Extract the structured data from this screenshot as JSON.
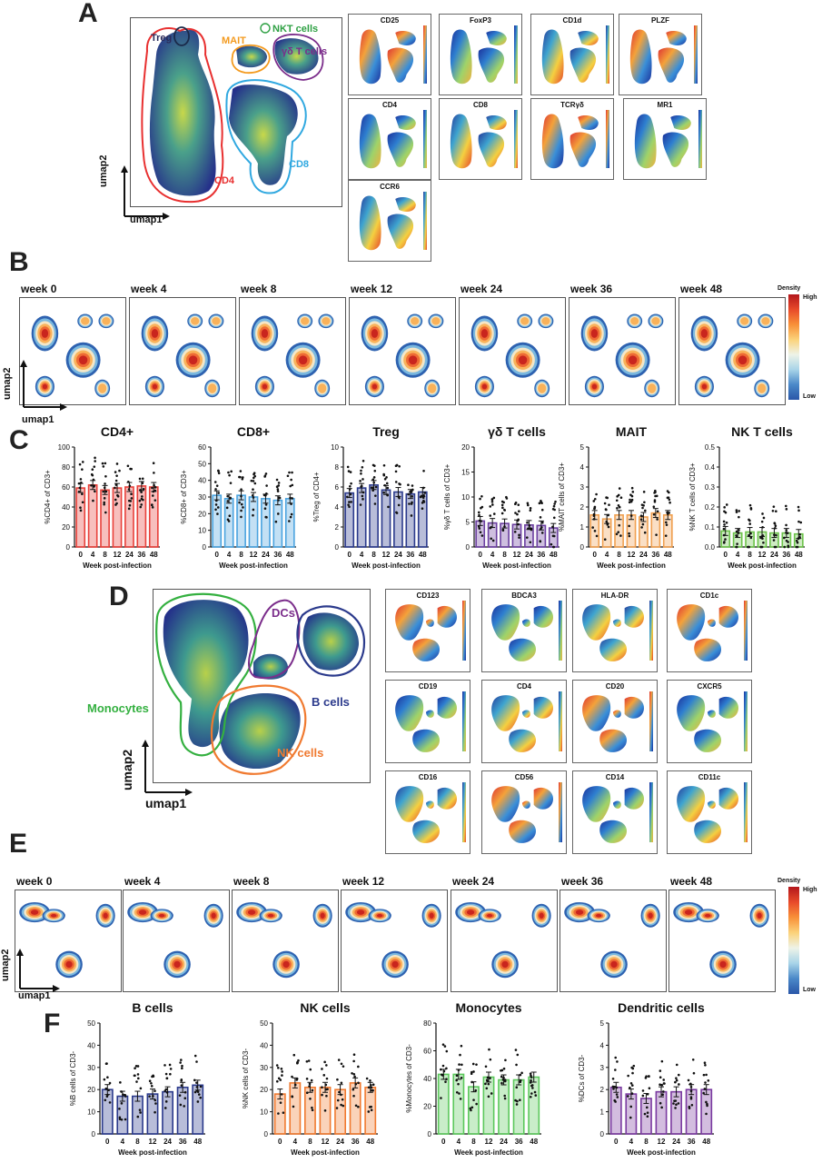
{
  "panels": {
    "A": {
      "letter": "A",
      "gates": {
        "treg": "Treg",
        "mait": "MAIT",
        "nkt": "NKT cells",
        "gd": "γδ T cells",
        "cd4": "CD4",
        "cd8": "CD8"
      },
      "axes": {
        "x": "umap1",
        "y": "umap2"
      },
      "markers": [
        "CD25",
        "FoxP3",
        "CD1d",
        "PLZF",
        "CD4",
        "CD8",
        "TCRγδ",
        "MR1",
        "CCR6"
      ]
    },
    "B": {
      "letter": "B",
      "weeks": [
        "week 0",
        "week 4",
        "week 8",
        "week 12",
        "week 24",
        "week 36",
        "week 48"
      ],
      "axes": {
        "x": "umap1",
        "y": "umap2"
      },
      "legend": {
        "title": "Density",
        "high": "High",
        "low": "Low"
      }
    },
    "C": {
      "letter": "C"
    },
    "D": {
      "letter": "D",
      "gates": {
        "dcs": "DCs",
        "monocytes": "Monocytes",
        "bcells": "B cells",
        "nk": "NK cells"
      },
      "axes": {
        "x": "umap1",
        "y": "umap2"
      },
      "markers": [
        "CD123",
        "BDCA3",
        "HLA-DR",
        "CD1c",
        "CD19",
        "CD4",
        "CD20",
        "CXCR5",
        "CD16",
        "CD56",
        "CD14",
        "CD11c"
      ]
    },
    "E": {
      "letter": "E",
      "weeks": [
        "week 0",
        "week 4",
        "week 8",
        "week 12",
        "week 24",
        "week 36",
        "week 48"
      ],
      "axes": {
        "x": "umap1",
        "y": "umap2"
      },
      "legend": {
        "title": "Density",
        "high": "High",
        "low": "Low"
      }
    },
    "F": {
      "letter": "F"
    }
  },
  "colors": {
    "red": "#e8403a",
    "blue": "#4aa3df",
    "navy": "#2b3a8c",
    "purple": "#6b3fa0",
    "orange": "#f0a050",
    "green": "#6cc24a",
    "nkorange": "#f07a30",
    "bgreen": "#5cc85c",
    "dcpurple": "#7a3aa0",
    "darkred": "#c01a24",
    "cd8blue": "#30a8e0",
    "gdpurple": "#7b2d8b",
    "maitorange": "#f39a1e",
    "nktgreen": "#2ea043"
  },
  "chart_data": [
    {
      "type": "bar",
      "title": "CD4+",
      "ylabel": "%CD4+ of CD3+",
      "xlabel": "Week post-infection",
      "categories": [
        "0",
        "4",
        "8",
        "12",
        "24",
        "36",
        "48"
      ],
      "values": [
        59,
        62,
        57,
        59,
        60,
        61,
        60
      ],
      "ylim": [
        0,
        100
      ],
      "yticks": [
        "0",
        "20",
        "40",
        "60",
        "80",
        "100"
      ],
      "color": "#e8403a"
    },
    {
      "type": "bar",
      "title": "CD8+",
      "ylabel": "%CD8+ of CD3+",
      "xlabel": "Week post-infection",
      "categories": [
        "0",
        "4",
        "8",
        "12",
        "24",
        "36",
        "48"
      ],
      "values": [
        31,
        29,
        31,
        30,
        29,
        28,
        29
      ],
      "ylim": [
        0,
        60
      ],
      "yticks": [
        "0",
        "10",
        "20",
        "30",
        "40",
        "50",
        "60"
      ],
      "color": "#4aa3df"
    },
    {
      "type": "bar",
      "title": "Treg",
      "ylabel": "%Treg of CD4+",
      "xlabel": "Week post-infection",
      "categories": [
        "0",
        "4",
        "8",
        "12",
        "24",
        "36",
        "48"
      ],
      "values": [
        5.4,
        5.9,
        6.2,
        5.7,
        5.5,
        5.3,
        5.5
      ],
      "ylim": [
        0,
        10
      ],
      "yticks": [
        "0",
        "2",
        "4",
        "6",
        "8",
        "10"
      ],
      "color": "#2b3a8c"
    },
    {
      "type": "bar",
      "title": "γδ T cells",
      "ylabel": "%γδ T cells of CD3+",
      "xlabel": "Week post-infection",
      "categories": [
        "0",
        "4",
        "8",
        "12",
        "24",
        "36",
        "48"
      ],
      "values": [
        5.2,
        4.8,
        4.7,
        4.5,
        4.4,
        4.3,
        3.8
      ],
      "ylim": [
        0,
        20
      ],
      "yticks": [
        "0",
        "5",
        "10",
        "15",
        "20"
      ],
      "color": "#6b3fa0"
    },
    {
      "type": "bar",
      "title": "MAIT",
      "ylabel": "%MAIT cells of CD3+",
      "xlabel": "Week post-infection",
      "categories": [
        "0",
        "4",
        "8",
        "12",
        "24",
        "36",
        "48"
      ],
      "values": [
        1.6,
        1.4,
        1.6,
        1.6,
        1.5,
        1.7,
        1.6
      ],
      "ylim": [
        0,
        5
      ],
      "yticks": [
        "0",
        "1",
        "2",
        "3",
        "4",
        "5"
      ],
      "color": "#f0a050"
    },
    {
      "type": "bar",
      "title": "NK T cells",
      "ylabel": "%NK T cells of CD3+",
      "xlabel": "Week post-infection",
      "categories": [
        "0",
        "4",
        "8",
        "12",
        "24",
        "36",
        "48"
      ],
      "values": [
        0.08,
        0.07,
        0.075,
        0.075,
        0.07,
        0.07,
        0.065
      ],
      "ylim": [
        0,
        0.5
      ],
      "yticks": [
        "0.0",
        "0.1",
        "0.2",
        "0.3",
        "0.4",
        "0.5"
      ],
      "color": "#6cc24a"
    },
    {
      "type": "bar",
      "title": "B cells",
      "ylabel": "%B cells of CD3-",
      "xlabel": "Week post-infection",
      "categories": [
        "0",
        "4",
        "8",
        "12",
        "24",
        "36",
        "48"
      ],
      "values": [
        20,
        17,
        17,
        18,
        19,
        21,
        22
      ],
      "ylim": [
        0,
        50
      ],
      "yticks": [
        "0",
        "10",
        "20",
        "30",
        "40",
        "50"
      ],
      "color": "#2b3a8c"
    },
    {
      "type": "bar",
      "title": "NK cells",
      "ylabel": "%NK cells of CD3-",
      "xlabel": "Week post-infection",
      "categories": [
        "0",
        "4",
        "8",
        "12",
        "24",
        "36",
        "48"
      ],
      "values": [
        18,
        23,
        21,
        21,
        20,
        23,
        21
      ],
      "ylim": [
        0,
        50
      ],
      "yticks": [
        "0",
        "10",
        "20",
        "30",
        "40",
        "50"
      ],
      "color": "#f07a30"
    },
    {
      "type": "bar",
      "title": "Monocytes",
      "ylabel": "%Monocytes of CD3-",
      "xlabel": "Week post-infection",
      "categories": [
        "0",
        "4",
        "8",
        "12",
        "24",
        "36",
        "48"
      ],
      "values": [
        43,
        43,
        34,
        41,
        39,
        39,
        41
      ],
      "ylim": [
        0,
        80
      ],
      "yticks": [
        "0",
        "20",
        "40",
        "60",
        "80"
      ],
      "color": "#5cc85c"
    },
    {
      "type": "bar",
      "title": "Dendritic cells",
      "ylabel": "%DCs of CD3-",
      "xlabel": "Week post-infection",
      "categories": [
        "0",
        "4",
        "8",
        "12",
        "24",
        "36",
        "48"
      ],
      "values": [
        2.1,
        1.8,
        1.6,
        1.9,
        1.9,
        2.0,
        2.0
      ],
      "ylim": [
        0,
        5
      ],
      "yticks": [
        "0",
        "1",
        "2",
        "3",
        "4",
        "5"
      ],
      "color": "#7a3aa0"
    }
  ]
}
